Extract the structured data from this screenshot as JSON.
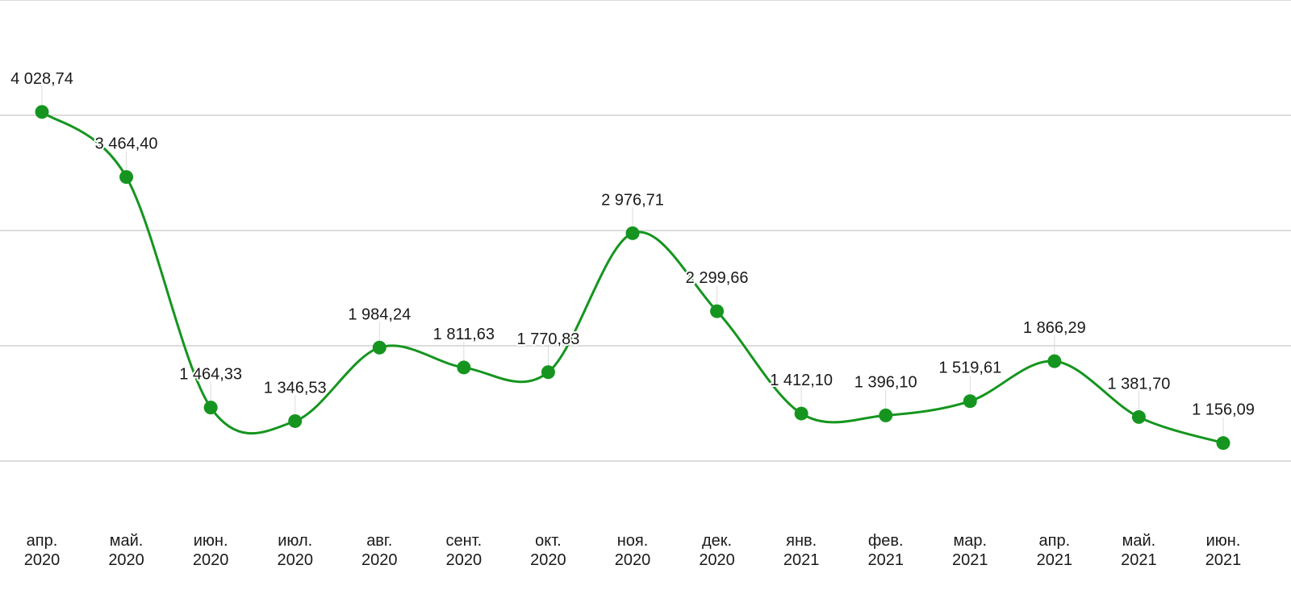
{
  "chart_data": {
    "type": "line",
    "categories": [
      [
        "апр.",
        "2020"
      ],
      [
        "май.",
        "2020"
      ],
      [
        "июн.",
        "2020"
      ],
      [
        "июл.",
        "2020"
      ],
      [
        "авг.",
        "2020"
      ],
      [
        "сент.",
        "2020"
      ],
      [
        "окт.",
        "2020"
      ],
      [
        "ноя.",
        "2020"
      ],
      [
        "дек.",
        "2020"
      ],
      [
        "янв.",
        "2021"
      ],
      [
        "фев.",
        "2021"
      ],
      [
        "мар.",
        "2021"
      ],
      [
        "апр.",
        "2021"
      ],
      [
        "май.",
        "2021"
      ],
      [
        "июн.",
        "2021"
      ]
    ],
    "series": [
      {
        "color": "#15951f",
        "values": [
          4028.74,
          3464.4,
          1464.33,
          1346.53,
          1984.24,
          1811.63,
          1770.83,
          2976.71,
          2299.66,
          1412.1,
          1396.1,
          1519.61,
          1866.29,
          1381.7,
          1156.09
        ],
        "labels": [
          "4 028,74",
          "3 464,40",
          "1 464,33",
          "1 346,53",
          "1 984,24",
          "1 811,63",
          "1 770,83",
          "2 976,71",
          "2 299,66",
          "1 412,10",
          "1 396,10",
          "1 519,61",
          "1 866,29",
          "1 381,70",
          "1 156,09"
        ]
      }
    ],
    "title": "",
    "xlabel": "",
    "ylabel": "",
    "ylim": [
      1000,
      5000
    ],
    "yticks": [
      1000,
      2000,
      3000,
      4000,
      5000
    ],
    "grid": true,
    "legend": "none",
    "y_tick_labels_shown": false
  }
}
